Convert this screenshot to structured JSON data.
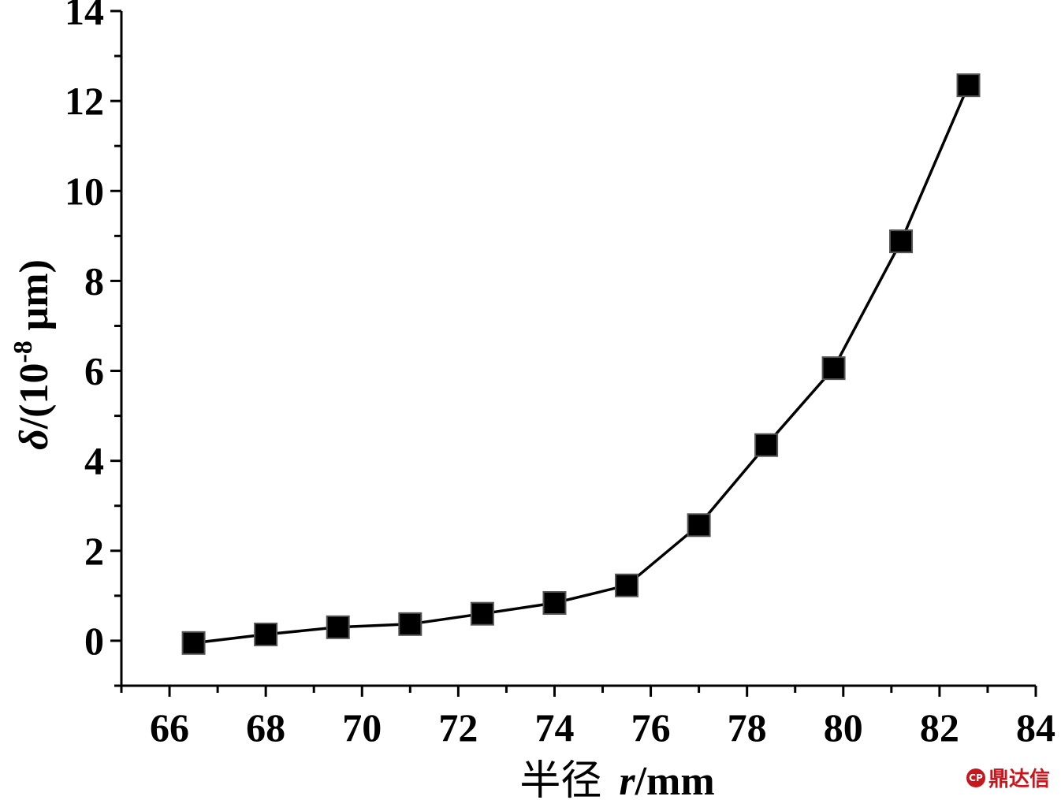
{
  "chart_data": {
    "type": "line",
    "xlabel": {
      "cjk": "半径",
      "var": "r",
      "unit": "/mm"
    },
    "ylabel": {
      "var": "δ",
      "prefix": "/(10",
      "exp": "-8",
      "unit": " μm)"
    },
    "xlim": [
      65,
      84
    ],
    "ylim": [
      -1,
      14
    ],
    "xticks": [
      66,
      68,
      70,
      72,
      74,
      76,
      78,
      80,
      82,
      84
    ],
    "yticks": [
      0,
      2,
      4,
      6,
      8,
      10,
      12,
      14
    ],
    "series": [
      {
        "marker": "square",
        "color": "#000000",
        "x": [
          66.5,
          68.0,
          69.5,
          71.0,
          72.5,
          74.0,
          75.5,
          77.0,
          78.4,
          79.8,
          81.2,
          82.6
        ],
        "y": [
          -0.05,
          0.14,
          0.3,
          0.37,
          0.6,
          0.84,
          1.23,
          2.57,
          4.35,
          6.06,
          8.88,
          12.35
        ]
      }
    ]
  },
  "watermark": {
    "logo": "CP",
    "text": "鼎达信"
  }
}
